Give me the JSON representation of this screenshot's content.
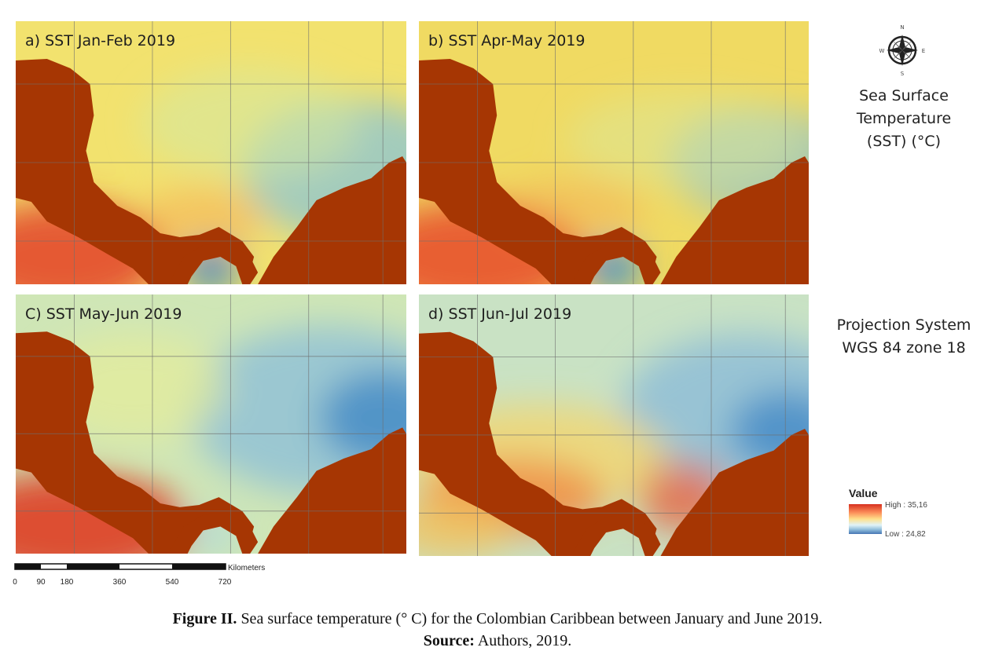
{
  "panels": [
    {
      "id": "a",
      "title": "a) SST Jan-Feb 2019",
      "sea": "a"
    },
    {
      "id": "b",
      "title": "b) SST Apr-May 2019",
      "sea": "b"
    },
    {
      "id": "c",
      "title": "C) SST May-Jun 2019",
      "sea": "c"
    },
    {
      "id": "d",
      "title": "d) SST Jun-Jul 2019",
      "sea": "d"
    }
  ],
  "compass": {
    "n": "N",
    "s": "S",
    "e": "E",
    "w": "W"
  },
  "legend_title_lines": [
    "Sea Surface",
    "Temperature",
    "(SST) (°C)"
  ],
  "projection_lines": [
    "Projection System",
    "WGS 84 zone 18"
  ],
  "legend": {
    "label": "Value",
    "high": "High : 35,16",
    "low": "Low : 24,82",
    "high_value": 35.16,
    "low_value": 24.82
  },
  "scalebar": {
    "ticks": [
      "0",
      "90",
      "180",
      "360",
      "540",
      "720"
    ],
    "unit": "Kilometers"
  },
  "caption": {
    "line1_bold": "Figure II.",
    "line1_text": " Sea surface temperature (° C) for the Colombian Caribbean between January and June 2019.",
    "line2_bold": "Source:",
    "line2_text": " Authors, 2019."
  },
  "colors": {
    "land": "#a63603",
    "high": "#d7301f",
    "mid": "#fee08b",
    "low": "#4575b4",
    "grid": "#6f6f6f"
  }
}
